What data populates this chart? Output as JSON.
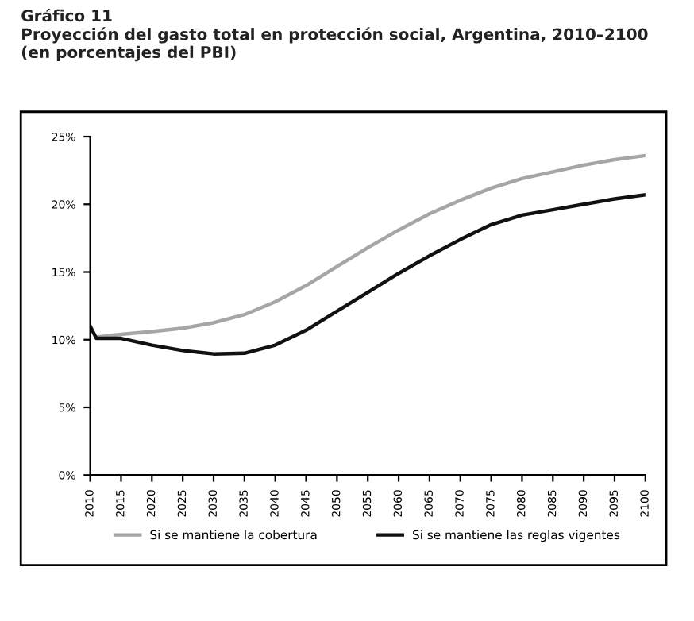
{
  "chart_data": {
    "type": "line",
    "title": "Gráfico 11\nProyección del gasto total en protección social, Argentina, 2010–2100\n(en porcentajes del PBI)",
    "series": [
      {
        "name": "Si se mantiene la cobertura",
        "color": "#a6a6a6",
        "x": [
          2011,
          2015,
          2020,
          2025,
          2030,
          2035,
          2040,
          2045,
          2050,
          2055,
          2060,
          2065,
          2070,
          2075,
          2080,
          2085,
          2090,
          2095,
          2100
        ],
        "values": [
          10.2,
          10.4,
          10.6,
          10.85,
          11.25,
          11.85,
          12.8,
          14.0,
          15.4,
          16.8,
          18.1,
          19.3,
          20.3,
          21.2,
          21.9,
          22.4,
          22.9,
          23.3,
          23.6
        ]
      },
      {
        "name": "Si se mantiene las reglas vigentes",
        "color": "#111111",
        "x": [
          2010,
          2011,
          2015,
          2020,
          2025,
          2030,
          2035,
          2040,
          2045,
          2050,
          2055,
          2060,
          2065,
          2070,
          2075,
          2080,
          2085,
          2090,
          2095,
          2100
        ],
        "values": [
          11.0,
          10.1,
          10.1,
          9.6,
          9.2,
          8.95,
          9.0,
          9.6,
          10.7,
          12.1,
          13.5,
          14.9,
          16.2,
          17.4,
          18.5,
          19.2,
          19.6,
          20.0,
          20.4,
          20.7
        ]
      }
    ],
    "xlim": [
      2010,
      2100
    ],
    "xticks": [
      2010,
      2015,
      2020,
      2025,
      2030,
      2035,
      2040,
      2045,
      2050,
      2055,
      2060,
      2065,
      2070,
      2075,
      2080,
      2085,
      2090,
      2095,
      2100
    ],
    "ylim": [
      0,
      25
    ],
    "yticks": [
      {
        "value": 0,
        "label": "0%"
      },
      {
        "value": 5,
        "label": "5%"
      },
      {
        "value": 10,
        "label": "10%"
      },
      {
        "value": 15,
        "label": "15%"
      },
      {
        "value": 20,
        "label": "20%"
      },
      {
        "value": 25,
        "label": "25%"
      }
    ],
    "grid": false,
    "legend": "bottom",
    "marker": "none",
    "line_style": "solid"
  }
}
